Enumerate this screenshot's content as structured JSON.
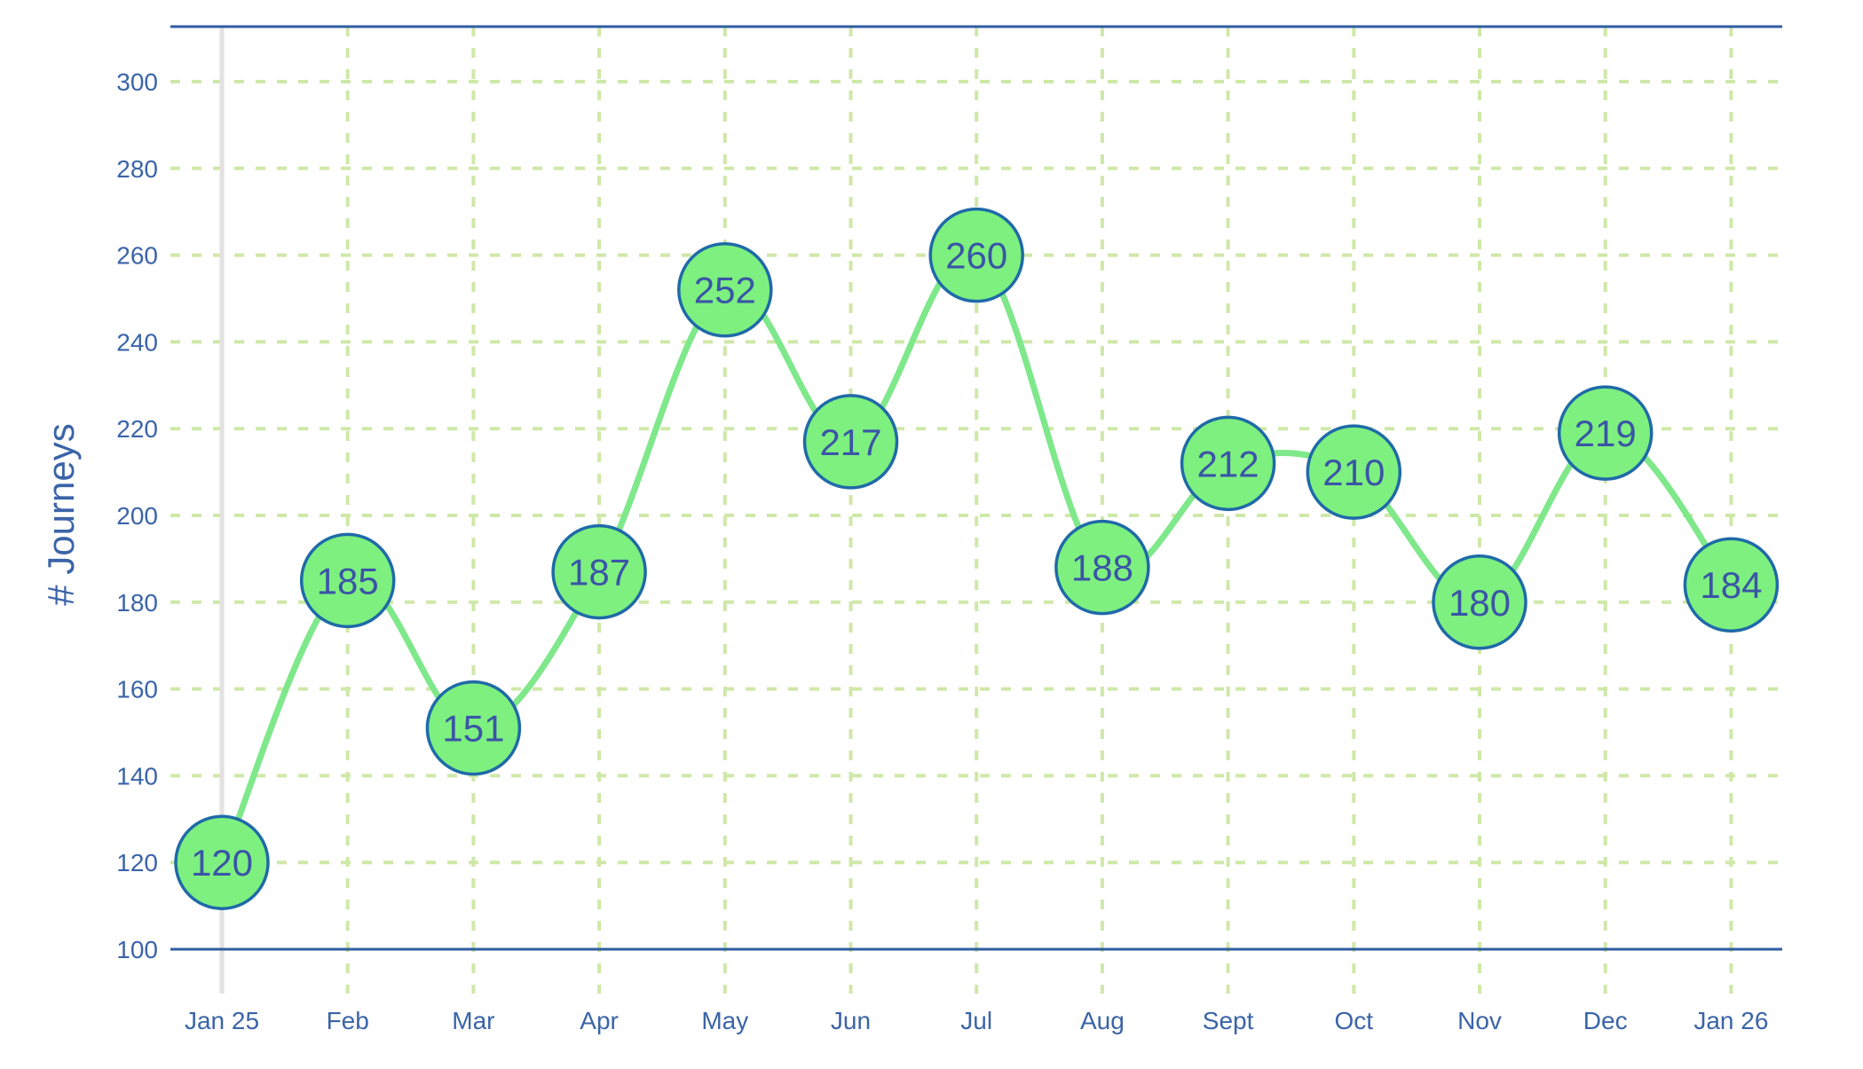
{
  "chart_data": {
    "type": "line",
    "title": "",
    "xlabel": "",
    "ylabel": "# Journeys",
    "categories": [
      "Jan 25",
      "Feb",
      "Mar",
      "Apr",
      "May",
      "Jun",
      "Jul",
      "Aug",
      "Sept",
      "Oct",
      "Nov",
      "Dec",
      "Jan 26"
    ],
    "series": [
      {
        "values": [
          120,
          185,
          151,
          187,
          252,
          217,
          260,
          188,
          212,
          210,
          180,
          219,
          184
        ]
      }
    ],
    "ylim": [
      100,
      300
    ],
    "yticks": [
      100,
      120,
      140,
      160,
      180,
      200,
      220,
      240,
      260,
      280,
      300
    ],
    "grid": true,
    "data_labels": true,
    "colors": {
      "line": "#7ee88a",
      "marker_fill": "#7df07f",
      "marker_stroke": "#1f6aa8",
      "grid": "#cfe8a8",
      "axis": "#2f5da1",
      "text": "#3b64a8"
    }
  }
}
